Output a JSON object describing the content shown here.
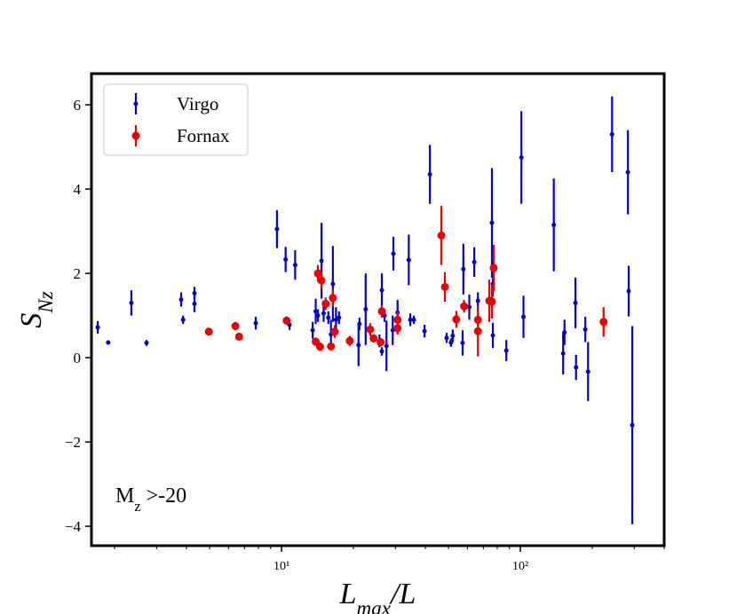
{
  "chart_data": {
    "type": "errorbar-scatter",
    "xlabel": [
      {
        "text": "L"
      },
      {
        "text": "max",
        "sub": true
      },
      {
        "text": "/L"
      }
    ],
    "ylabel": [
      {
        "text": "S"
      },
      {
        "text": "Nz",
        "sub": true
      }
    ],
    "annotation": [
      {
        "text": "M"
      },
      {
        "text": "z",
        "sub": true
      },
      {
        "text": " >-20"
      }
    ],
    "xlog": true,
    "xlim": [
      1.6,
      400
    ],
    "ylim": [
      -4.46,
      6.74
    ],
    "xticks": [
      {
        "value": 10,
        "label": "10¹"
      },
      {
        "value": 100,
        "label": "10²"
      }
    ],
    "xticks_minor": [
      2,
      3,
      4,
      5,
      6,
      7,
      8,
      9,
      20,
      30,
      40,
      50,
      60,
      70,
      80,
      90,
      200,
      300,
      400
    ],
    "yticks": [
      {
        "value": -4,
        "label": "−4"
      },
      {
        "value": -2,
        "label": "−2"
      },
      0,
      2,
      4,
      6
    ],
    "legend": "upper left",
    "series": [
      {
        "name": "Virgo",
        "color": "#0000dd",
        "marker_size": 2.5,
        "x": [
          1.7,
          1.88,
          2.35,
          2.72,
          3.8,
          3.87,
          4.32,
          4.32,
          7.8,
          9.57,
          10.4,
          10.8,
          11.4,
          13.5,
          13.9,
          14.2,
          14.7,
          15.0,
          15.7,
          16.1,
          16.4,
          16.9,
          17.4,
          21.0,
          21.2,
          22.5,
          25.7,
          26.3,
          26.3,
          27.0,
          27.5,
          29.2,
          29.4,
          30.6,
          34.1,
          34.6,
          35.8,
          39.7,
          41.8,
          49.1,
          51.2,
          52.1,
          57.3,
          57.7,
          61.1,
          64.1,
          66.4,
          76.0,
          76.7,
          76.7,
          87.3,
          101,
          103,
          138,
          151,
          153,
          170,
          171,
          187,
          192,
          242,
          282,
          284,
          294
        ],
        "values": [
          0.72,
          0.36,
          1.3,
          0.35,
          1.38,
          0.9,
          1.53,
          1.28,
          0.82,
          3.05,
          2.33,
          0.78,
          2.2,
          0.65,
          1.1,
          1.0,
          2.3,
          1.05,
          0.95,
          0.55,
          1.75,
          0.9,
          0.95,
          0.3,
          0.8,
          1.15,
          0.4,
          1.6,
          0.15,
          1.0,
          0.28,
          0.65,
          2.47,
          1.07,
          2.32,
          0.9,
          0.9,
          0.63,
          4.35,
          0.47,
          0.36,
          0.52,
          0.35,
          2.1,
          1.2,
          2.27,
          1.35,
          3.2,
          1.75,
          0.53,
          0.17,
          4.75,
          0.97,
          3.15,
          0.1,
          0.6,
          1.3,
          -0.23,
          0.67,
          -0.33,
          5.3,
          4.4,
          1.58,
          -1.6
        ],
        "errors": [
          0.15,
          0.05,
          0.3,
          0.07,
          0.17,
          0.1,
          0.15,
          0.2,
          0.15,
          0.45,
          0.3,
          0.12,
          0.35,
          0.2,
          0.3,
          0.15,
          0.9,
          0.2,
          0.15,
          0.35,
          0.9,
          0.3,
          0.15,
          0.5,
          0.15,
          0.85,
          0.15,
          0.4,
          0.1,
          0.15,
          0.6,
          0.35,
          0.4,
          0.3,
          0.6,
          0.15,
          0.1,
          0.15,
          0.7,
          0.12,
          0.1,
          0.15,
          0.3,
          0.6,
          0.3,
          0.35,
          0.2,
          1.3,
          0.3,
          0.3,
          0.25,
          1.1,
          0.5,
          1.1,
          0.5,
          0.3,
          0.6,
          0.3,
          0.3,
          0.7,
          0.9,
          1.0,
          0.6,
          2.35
        ]
      },
      {
        "name": "Fornax",
        "color": "#ee0000",
        "marker_size": 4.5,
        "x": [
          4.96,
          6.41,
          6.64,
          10.5,
          13.9,
          14.2,
          14.5,
          14.7,
          15.3,
          16.1,
          16.4,
          16.7,
          19.3,
          23.5,
          24.3,
          26.0,
          26.3,
          30.6,
          30.6,
          46.7,
          48.3,
          53.9,
          58.1,
          66.4,
          66.4,
          74.1,
          76.0,
          77.3,
          223
        ],
        "values": [
          0.62,
          0.75,
          0.5,
          0.88,
          0.38,
          2.0,
          0.26,
          1.83,
          1.28,
          0.27,
          1.42,
          0.62,
          0.4,
          0.67,
          0.46,
          0.37,
          1.1,
          0.9,
          0.7,
          2.9,
          1.68,
          0.91,
          1.22,
          0.9,
          0.63,
          1.35,
          1.33,
          2.13,
          0.85
        ],
        "errors": [
          0.05,
          0.1,
          0.07,
          0.1,
          0.1,
          0.2,
          0.1,
          0.2,
          0.15,
          0.1,
          0.2,
          0.15,
          0.12,
          0.15,
          0.1,
          0.1,
          0.15,
          0.2,
          0.15,
          0.7,
          0.35,
          0.2,
          0.15,
          0.25,
          0.6,
          0.5,
          0.4,
          0.55,
          0.35
        ]
      }
    ]
  }
}
